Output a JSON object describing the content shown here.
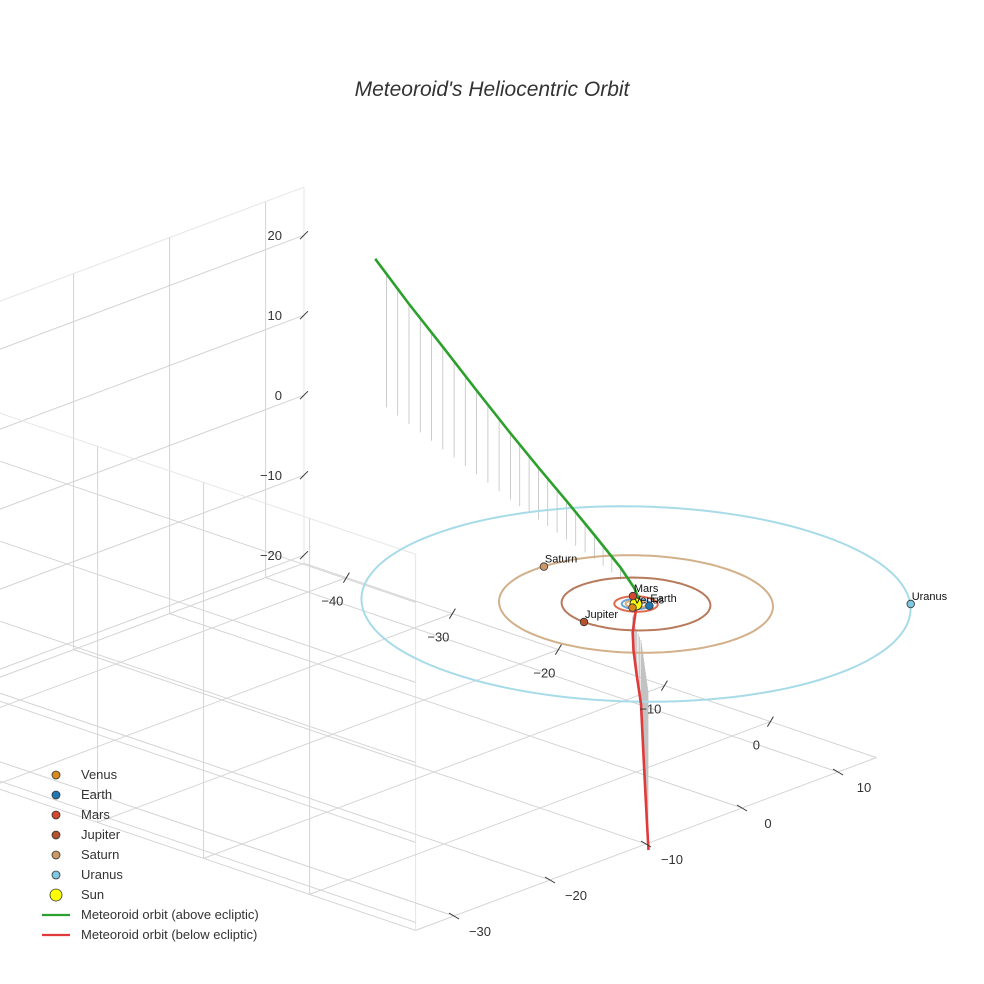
{
  "chart_data": {
    "type": "scatter3d",
    "title": "Meteoroid's Heliocentric Orbit",
    "axes": {
      "x": {
        "ticks": [
          -40,
          -30,
          -20,
          -10,
          0
        ]
      },
      "y": {
        "ticks": [
          -30,
          -20,
          -10,
          0,
          10
        ]
      },
      "z": {
        "ticks": [
          20,
          10,
          0,
          -10,
          -20
        ]
      }
    },
    "planets": [
      {
        "name": "Venus",
        "color": "#d98a1c",
        "orbit_color": "#e0b070",
        "radius_au": 0.72,
        "position": [
          0.3,
          -0.7,
          0
        ]
      },
      {
        "name": "Earth",
        "color": "#1f78b4",
        "orbit_color": "#6ca6d8",
        "radius_au": 1.0,
        "position": [
          0.9,
          0.4,
          0
        ]
      },
      {
        "name": "Mars",
        "color": "#d1492e",
        "orbit_color": "#e06a4e",
        "radius_au": 1.52,
        "position": [
          -1.2,
          1.0,
          0
        ]
      },
      {
        "name": "Jupiter",
        "color": "#b5532d",
        "orbit_color": "#b87a5c",
        "radius_au": 5.2,
        "position": [
          -0.2,
          -5.2,
          0
        ]
      },
      {
        "name": "Saturn",
        "color": "#cc9966",
        "orbit_color": "#d2b08a",
        "radius_au": 9.58,
        "position": [
          -9.5,
          0.9,
          0
        ]
      },
      {
        "name": "Uranus",
        "color": "#7ec8e3",
        "orbit_color": "#a8dbe8",
        "radius_au": 19.2,
        "position": [
          13.6,
          13.6,
          0
        ]
      }
    ],
    "sun": {
      "name": "Sun",
      "color": "#ffff00",
      "position": [
        0,
        0,
        0
      ]
    },
    "meteoroid_orbit": {
      "above": {
        "name": "Meteoroid orbit (above ecliptic)",
        "color": "#2ca02c",
        "points": [
          [
            0.5,
            0,
            0.1
          ],
          [
            -1.5,
            1.5,
            0.6
          ],
          [
            -4,
            2.8,
            1.5
          ],
          [
            -8,
            4.5,
            3
          ],
          [
            -12,
            6,
            4.8
          ],
          [
            -16,
            7.5,
            6.5
          ],
          [
            -20,
            9,
            8.3
          ],
          [
            -25,
            11,
            10.5
          ],
          [
            -30,
            13,
            12.8
          ],
          [
            -35,
            15,
            15
          ],
          [
            -40,
            17,
            17.5
          ]
        ]
      },
      "below": {
        "name": "Meteoroid orbit (below ecliptic)",
        "color": "#e03a3a",
        "points": [
          [
            0.3,
            -0.3,
            -0.1
          ],
          [
            0.8,
            -1,
            -0.8
          ],
          [
            1.5,
            -2,
            -2
          ],
          [
            2.3,
            -2.8,
            -3.5
          ],
          [
            3.5,
            -3.8,
            -5.5
          ],
          [
            5,
            -5,
            -8
          ],
          [
            6.5,
            -6.5,
            -10.5
          ],
          [
            8,
            -8,
            -13
          ],
          [
            9.5,
            -9.5,
            -15.3
          ],
          [
            11,
            -11,
            -17.5
          ],
          [
            12.5,
            -12.5,
            -19.5
          ]
        ]
      }
    },
    "legend": {
      "position": "bottom-left",
      "entries": [
        "Venus",
        "Earth",
        "Mars",
        "Jupiter",
        "Saturn",
        "Uranus",
        "Sun",
        "Meteoroid orbit (above ecliptic)",
        "Meteoroid orbit (below ecliptic)"
      ]
    }
  }
}
